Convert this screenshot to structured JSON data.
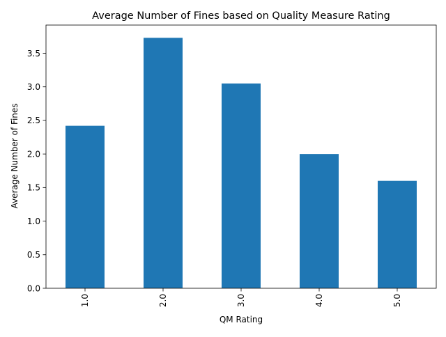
{
  "chart_data": {
    "type": "bar",
    "title": "Average Number of Fines based on Quality Measure Rating",
    "xlabel": "QM Rating",
    "ylabel": "Average Number of Fines",
    "categories": [
      "1.0",
      "2.0",
      "3.0",
      "4.0",
      "5.0"
    ],
    "values": [
      2.42,
      3.73,
      3.05,
      2.0,
      1.6
    ],
    "ylim": [
      0,
      3.92
    ],
    "yticks": [
      "0.0",
      "0.5",
      "1.0",
      "1.5",
      "2.0",
      "2.5",
      "3.0",
      "3.5"
    ],
    "grid": false,
    "legend": "none",
    "bar_color": "#1f77b4"
  }
}
